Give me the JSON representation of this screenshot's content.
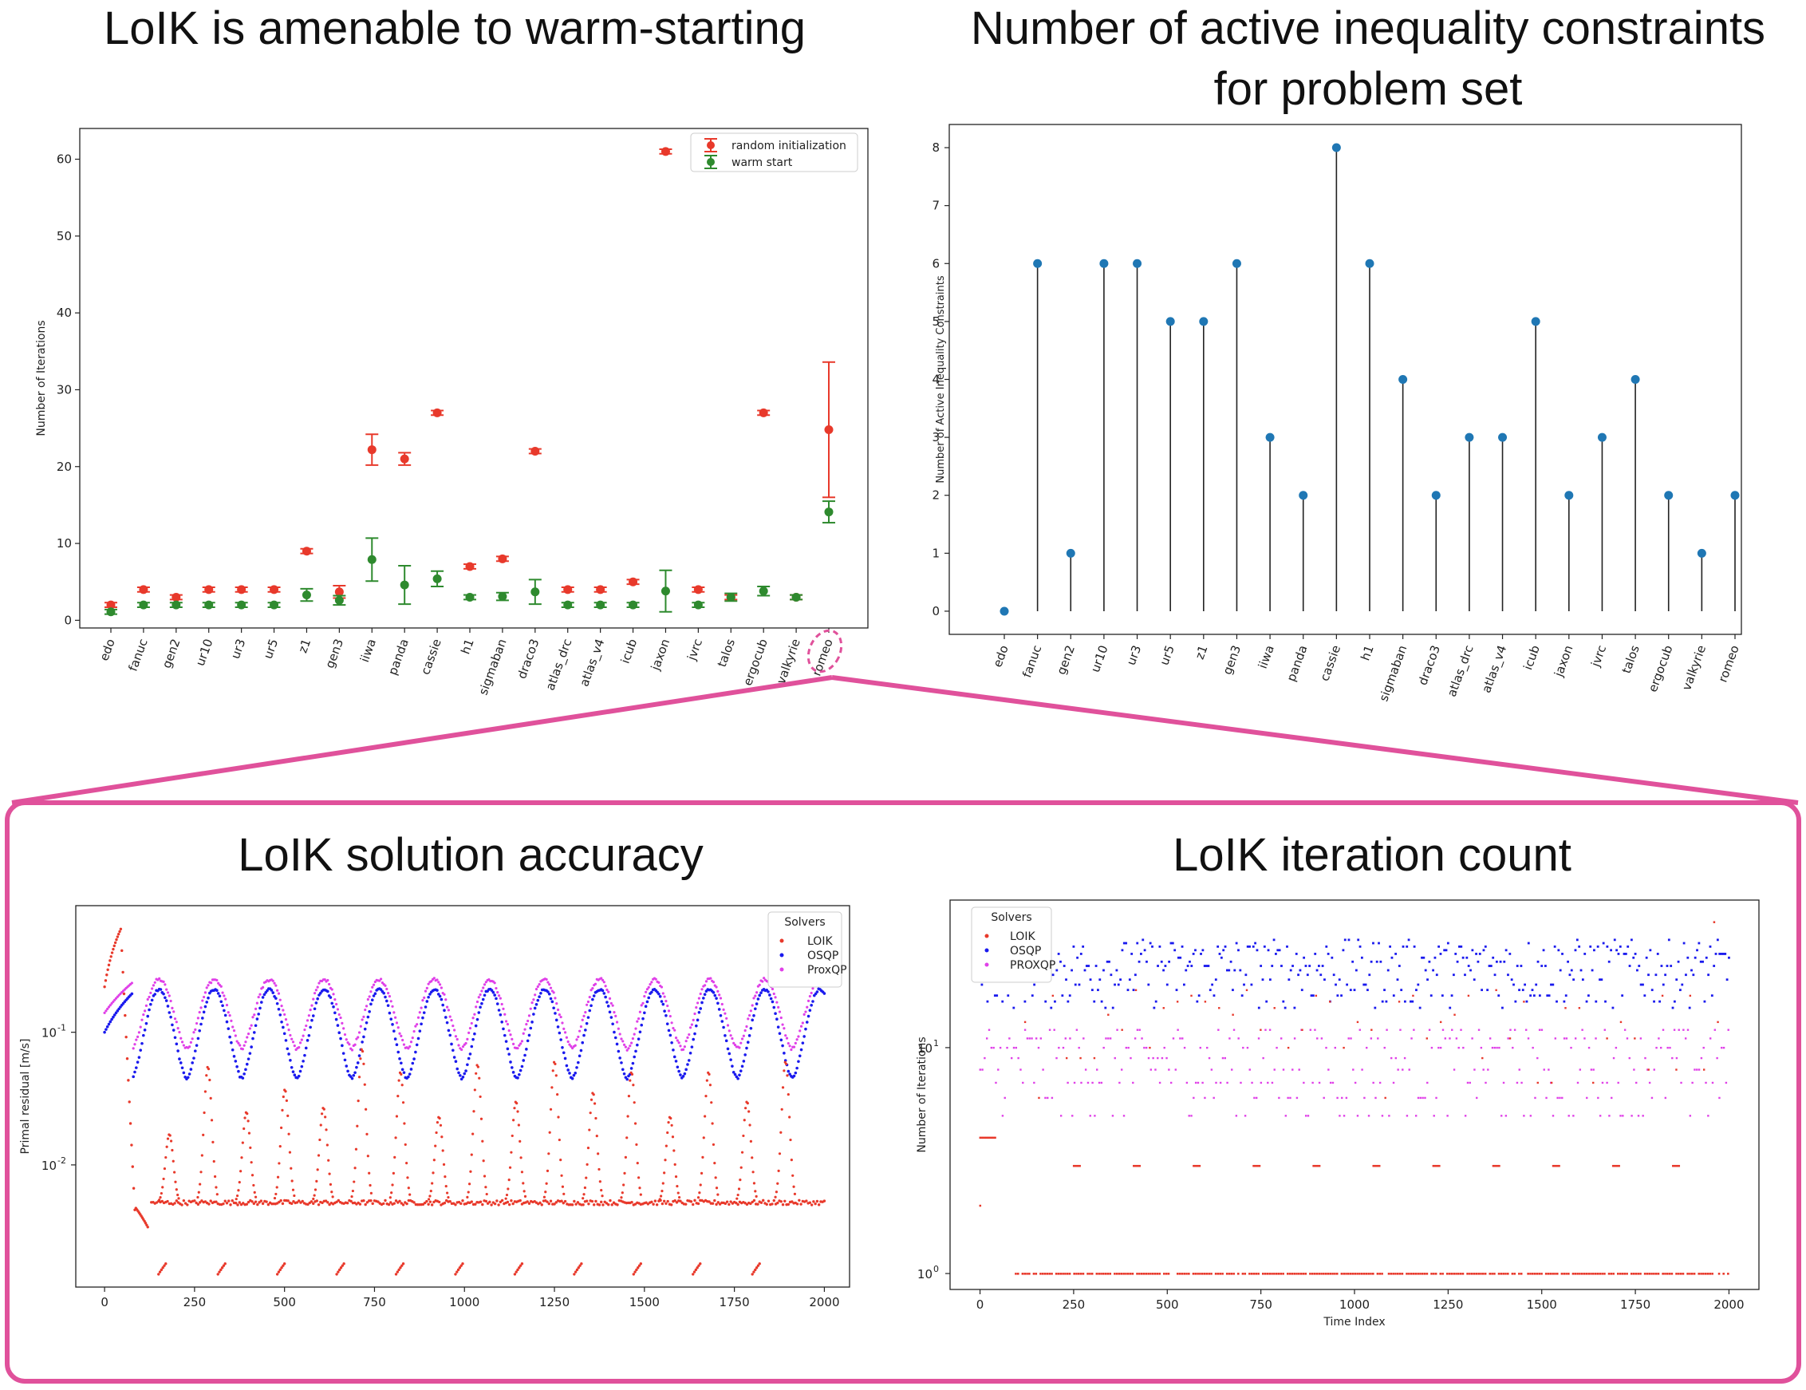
{
  "titles": {
    "warm": "LoIK is amenable to warm-starting",
    "active_line1": "Number of active inequality constraints",
    "active_line2": "for problem set",
    "accuracy": "LoIK solution accuracy",
    "itercount": "LoIK iteration count"
  },
  "colors": {
    "random": "#e8392b",
    "warm": "#2e8a2e",
    "stem": "#1f77b4",
    "highlight": "#e0519b",
    "loik": "#e8392b",
    "osqp": "#1a1aee",
    "proxqp": "#e040e8"
  },
  "chart_data": [
    {
      "id": "warmstart",
      "type": "scatter",
      "title": "LoIK is amenable to warm-starting",
      "ylabel": "Number of Iterations",
      "ylim": [
        -1,
        64
      ],
      "yticks": [
        0,
        10,
        20,
        30,
        40,
        50,
        60
      ],
      "categories": [
        "edo",
        "fanuc",
        "gen2",
        "ur10",
        "ur3",
        "ur5",
        "z1",
        "gen3",
        "iiwa",
        "panda",
        "cassie",
        "h1",
        "sigmaban",
        "draco3",
        "atlas_drc",
        "atlas_v4",
        "icub",
        "jaxon",
        "jvrc",
        "talos",
        "ergocub",
        "valkyrie",
        "romeo"
      ],
      "highlight_category": "romeo",
      "legend": [
        "random initialization",
        "warm start"
      ],
      "series": [
        {
          "name": "random initialization",
          "values": [
            2,
            4,
            3,
            4,
            4,
            4,
            9,
            3.7,
            22.2,
            21,
            27,
            7,
            8,
            22,
            4,
            4,
            5,
            61,
            4,
            3,
            27,
            3,
            24.8
          ],
          "err": [
            0.3,
            0.3,
            0.3,
            0.3,
            0.3,
            0.3,
            0.3,
            0.8,
            2,
            0.8,
            0.3,
            0.3,
            0.3,
            0.3,
            0.3,
            0.3,
            0.3,
            0.3,
            0.3,
            0.3,
            0.3,
            0.3,
            8.8
          ]
        },
        {
          "name": "warm start",
          "values": [
            1.1,
            2,
            2,
            2,
            2,
            2,
            3.3,
            2.6,
            7.9,
            4.6,
            5.4,
            3,
            3.1,
            3.7,
            2,
            2,
            2,
            3.8,
            2,
            3,
            3.8,
            3,
            14.1
          ],
          "err": [
            0.3,
            0.3,
            0.3,
            0.3,
            0.3,
            0.3,
            0.8,
            0.6,
            2.8,
            2.5,
            1,
            0.3,
            0.5,
            1.6,
            0.3,
            0.3,
            0.3,
            2.7,
            0.3,
            0.5,
            0.6,
            0.3,
            1.4
          ]
        }
      ]
    },
    {
      "id": "active",
      "type": "stem",
      "title": "Number of active inequality constraints for problem set",
      "ylabel": "Number of Active Inequality Constraints",
      "ylim": [
        -0.4,
        8.4
      ],
      "yticks": [
        0,
        1,
        2,
        3,
        4,
        5,
        6,
        7,
        8
      ],
      "categories": [
        "edo",
        "fanuc",
        "gen2",
        "ur10",
        "ur3",
        "ur5",
        "z1",
        "gen3",
        "iiwa",
        "panda",
        "cassie",
        "h1",
        "sigmaban",
        "draco3",
        "atlas_drc",
        "atlas_v4",
        "icub",
        "jaxon",
        "jvrc",
        "talos",
        "ergocub",
        "valkyrie",
        "romeo"
      ],
      "values": [
        0,
        6,
        1,
        6,
        6,
        5,
        5,
        6,
        3,
        2,
        8,
        6,
        4,
        2,
        3,
        3,
        5,
        2,
        3,
        4,
        2,
        1,
        2
      ]
    },
    {
      "id": "accuracy",
      "type": "scatter",
      "title": "LoIK solution accuracy",
      "ylabel": "Primal residual [m/s]",
      "yscale": "log",
      "ylim": [
        0.0012,
        0.9
      ],
      "xlim": [
        -80,
        2070
      ],
      "xticks": [
        0,
        250,
        500,
        750,
        1000,
        1250,
        1500,
        1750,
        2000
      ],
      "ytick_labels": [
        {
          "value": 0.1,
          "label": "10",
          "exp": "-1"
        },
        {
          "value": 0.01,
          "label": "10",
          "exp": "-2"
        }
      ],
      "legend_title": "Solvers",
      "series_names": [
        "LOIK",
        "OSQP",
        "ProxQP"
      ],
      "x_range": [
        0,
        2000
      ],
      "period": 153,
      "description_values": {
        "osqp": {
          "peak": 0.21,
          "trough": 0.045
        },
        "proxqp": {
          "peak": 0.25,
          "trough": 0.075
        },
        "loik": {
          "startup_peak": 0.6,
          "baseline": 0.0052,
          "spike_peaks": [
            0.017,
            0.055,
            0.025,
            0.037,
            0.027,
            0.075,
            0.05,
            0.023,
            0.057,
            0.03,
            0.06,
            0.035,
            0.05,
            0.023,
            0.05,
            0.03,
            0.06
          ],
          "lower_segment": 0.0015
        }
      }
    },
    {
      "id": "iterations",
      "type": "scatter",
      "title": "LoIK iteration count",
      "xlabel": "Time Index",
      "ylabel": "Number of Iterations",
      "yscale": "log",
      "ylim": [
        0.85,
        45
      ],
      "xlim": [
        -80,
        2080
      ],
      "xticks": [
        0,
        250,
        500,
        750,
        1000,
        1250,
        1500,
        1750,
        2000
      ],
      "ytick_labels": [
        {
          "value": 10,
          "label": "10",
          "exp": "1"
        },
        {
          "value": 1,
          "label": "10",
          "exp": "0"
        }
      ],
      "legend_title": "Solvers",
      "series_names": [
        "LOIK",
        "OSQP",
        "PROXQP"
      ],
      "x_range": [
        0,
        2000
      ],
      "description_values": {
        "loik": {
          "main_level": 1,
          "secondary_level": 3,
          "startup_level": 4
        },
        "osqp": {
          "min": 15,
          "max": 30
        },
        "proxqp": {
          "levels": [
            5,
            6,
            7,
            8,
            9,
            10,
            11,
            12
          ]
        }
      }
    }
  ]
}
